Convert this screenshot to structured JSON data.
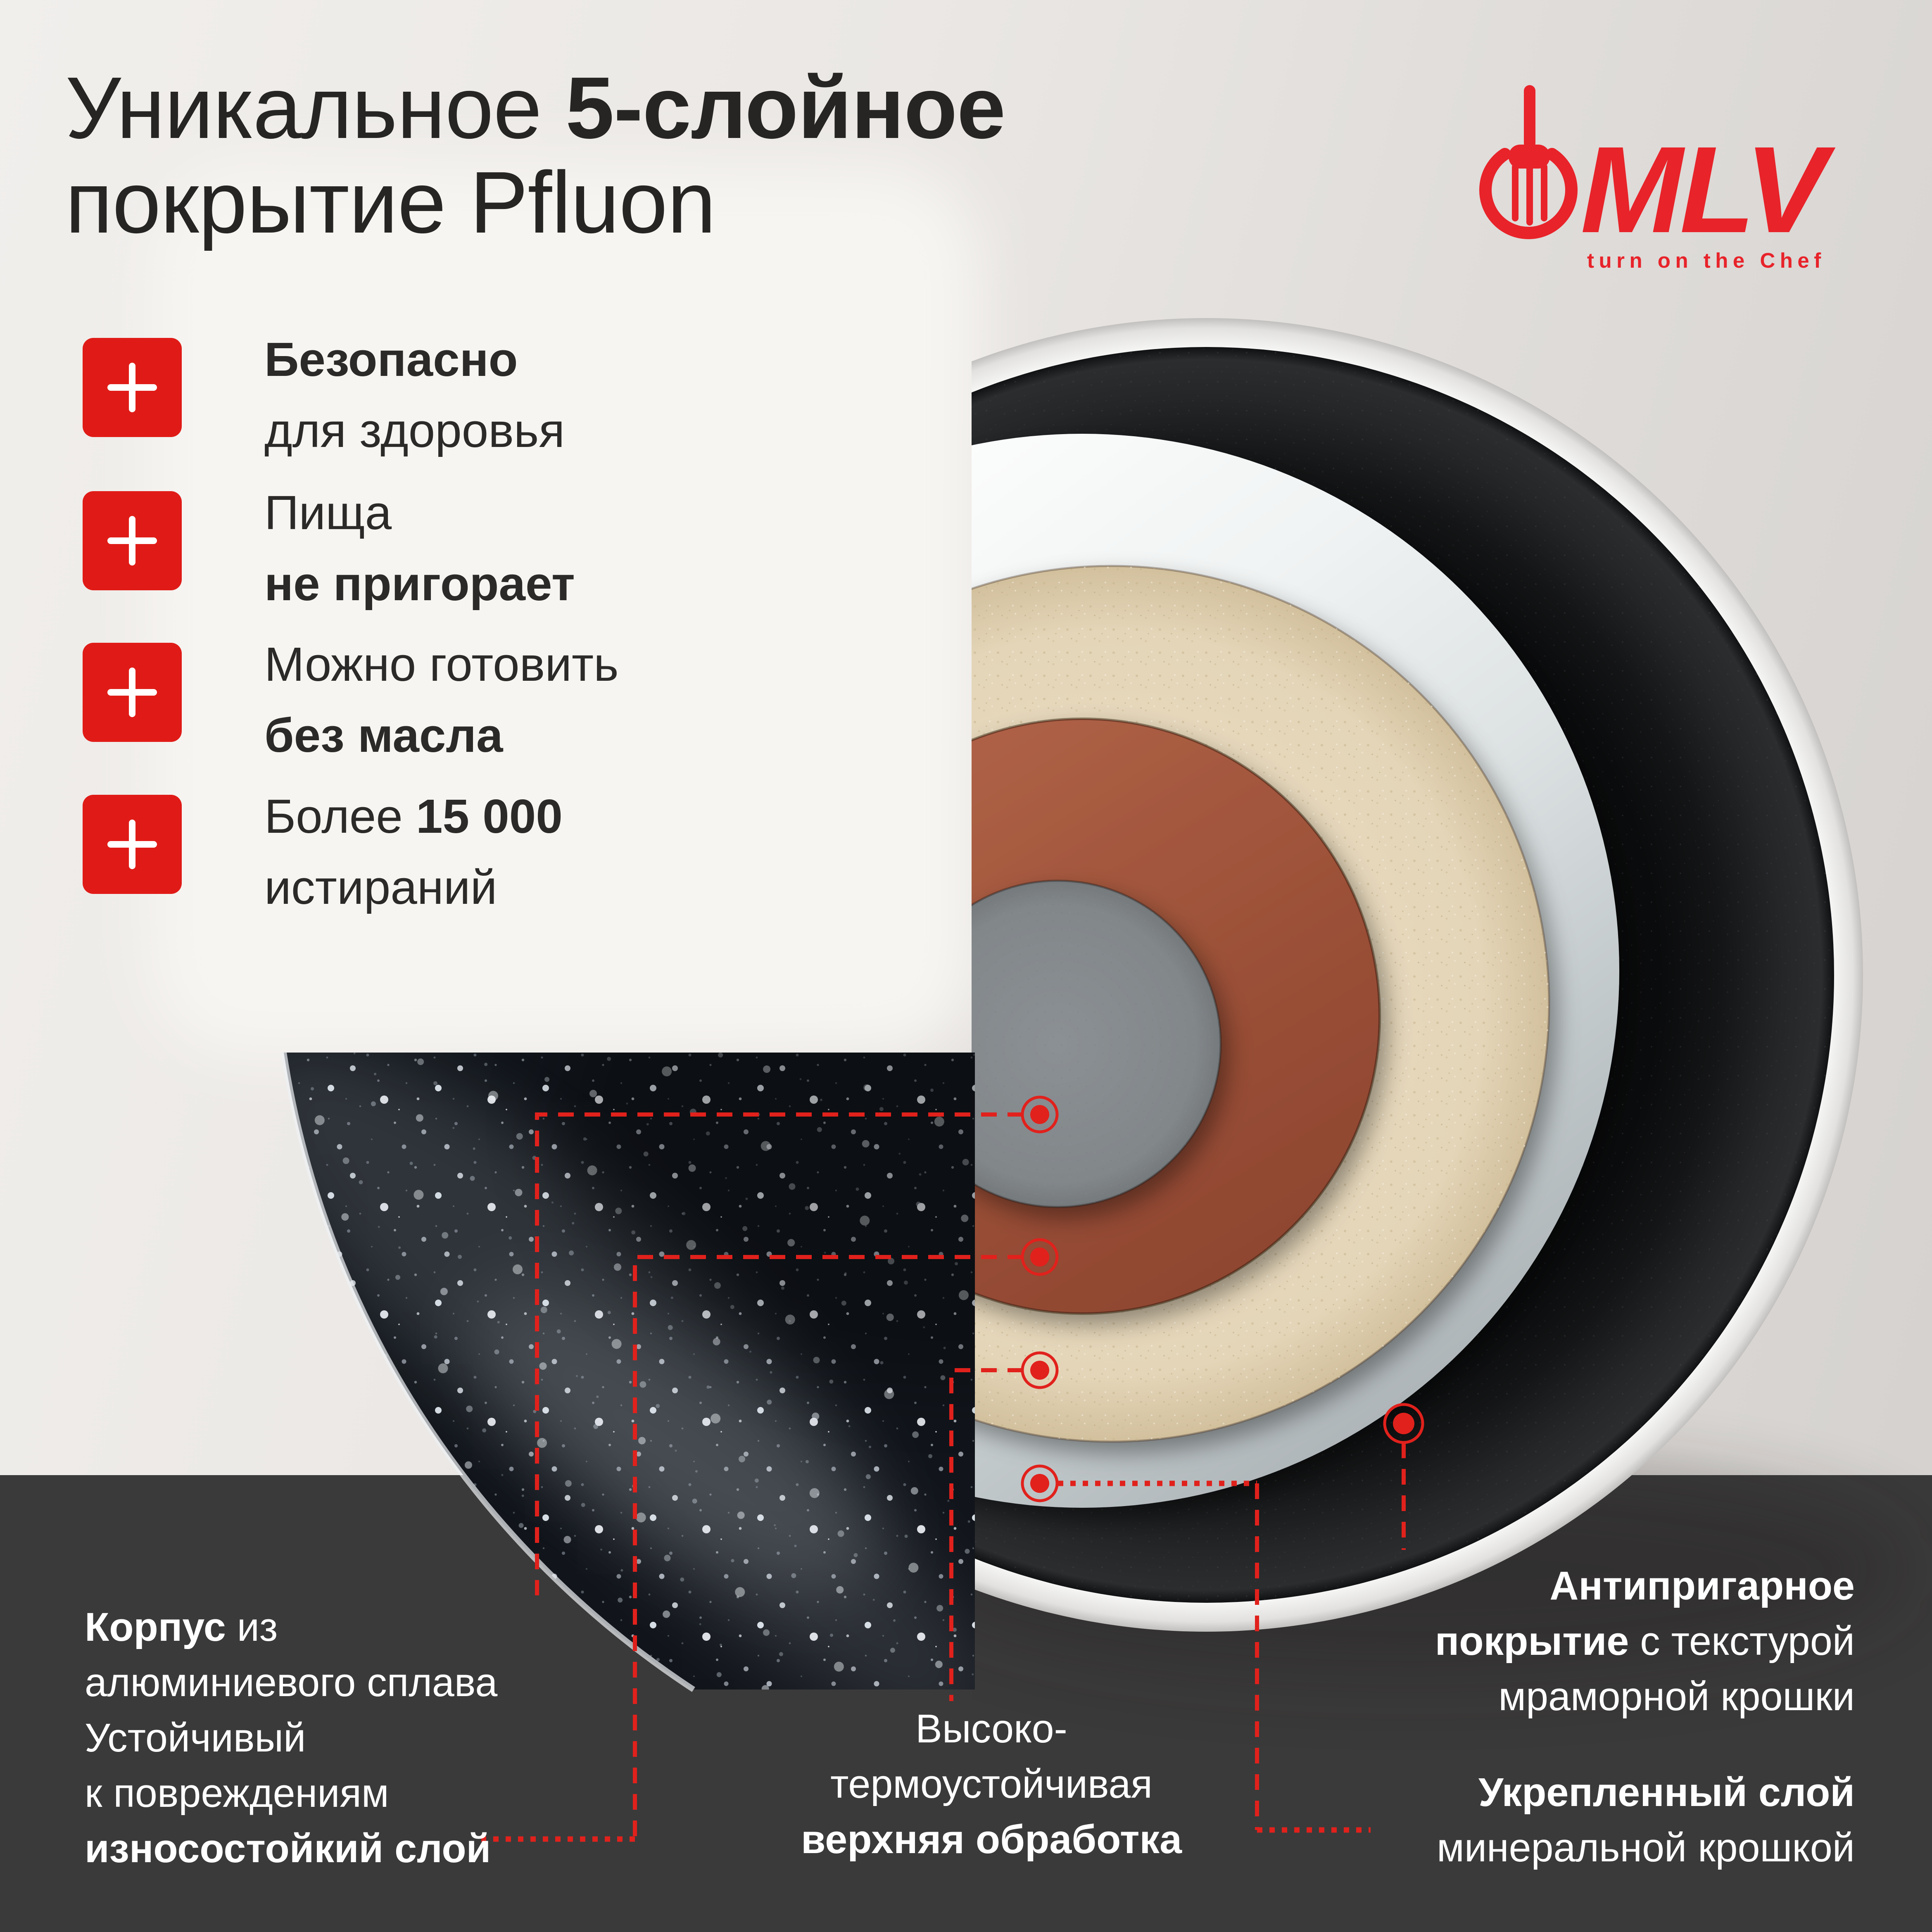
{
  "colors": {
    "accent_red": "#e01b17",
    "logo_red": "#e8232a",
    "band_dark": "#3a3a3a",
    "text_dark": "#272523",
    "text_light": "#ffffff",
    "layer_gray": "#84898c",
    "layer_brown": "#9c5138",
    "layer_cream": "#e6d8bd",
    "layer_silver": "#dde2e3",
    "layer_black": "#151617",
    "rim_white": "#fafafa"
  },
  "logo": {
    "brand": "MLV",
    "tagline": "turn on the Chef"
  },
  "title": {
    "lines": [
      [
        {
          "t": "Уникальное "
        },
        {
          "t": "5-слойное",
          "b": true
        }
      ],
      [
        {
          "t": "покрытие Pfluon"
        }
      ]
    ]
  },
  "benefits": [
    {
      "lines": [
        [
          {
            "t": "Безопасно",
            "b": true
          }
        ],
        [
          {
            "t": "для здоровья"
          }
        ]
      ]
    },
    {
      "lines": [
        [
          {
            "t": "Пища"
          }
        ],
        [
          {
            "t": "не пригорает",
            "b": true
          }
        ]
      ]
    },
    {
      "lines": [
        [
          {
            "t": "Можно готовить"
          }
        ],
        [
          {
            "t": "без масла",
            "b": true
          }
        ]
      ]
    },
    {
      "lines": [
        [
          {
            "t": "Более "
          },
          {
            "t": "15 000",
            "b": true
          }
        ],
        [
          {
            "t": "истираний"
          }
        ]
      ]
    }
  ],
  "layer_labels": {
    "body": {
      "lines": [
        [
          {
            "t": "Корпус",
            "b": true
          },
          {
            "t": " из"
          }
        ],
        [
          {
            "t": "алюминиевого сплава"
          }
        ]
      ]
    },
    "wear": {
      "lines": [
        [
          {
            "t": "Устойчивый"
          }
        ],
        [
          {
            "t": "к повреждениям"
          }
        ],
        [
          {
            "t": "износостойкий слой",
            "b": true
          }
        ]
      ]
    },
    "top_coat": {
      "lines": [
        [
          {
            "t": "Высоко-"
          }
        ],
        [
          {
            "t": "термоустойчивая"
          }
        ],
        [
          {
            "t": "верхняя обработка",
            "b": true
          }
        ]
      ]
    },
    "nonstick": {
      "lines": [
        [
          {
            "t": "Антипригарное",
            "b": true
          }
        ],
        [
          {
            "t": "покрытие",
            "b": true
          },
          {
            "t": " с текстурой"
          }
        ],
        [
          {
            "t": "мраморной крошки"
          }
        ]
      ]
    },
    "mineral": {
      "lines": [
        [
          {
            "t": "Укрепленный слой",
            "b": true
          }
        ],
        [
          {
            "t": "минеральной крошкой"
          }
        ]
      ]
    }
  }
}
